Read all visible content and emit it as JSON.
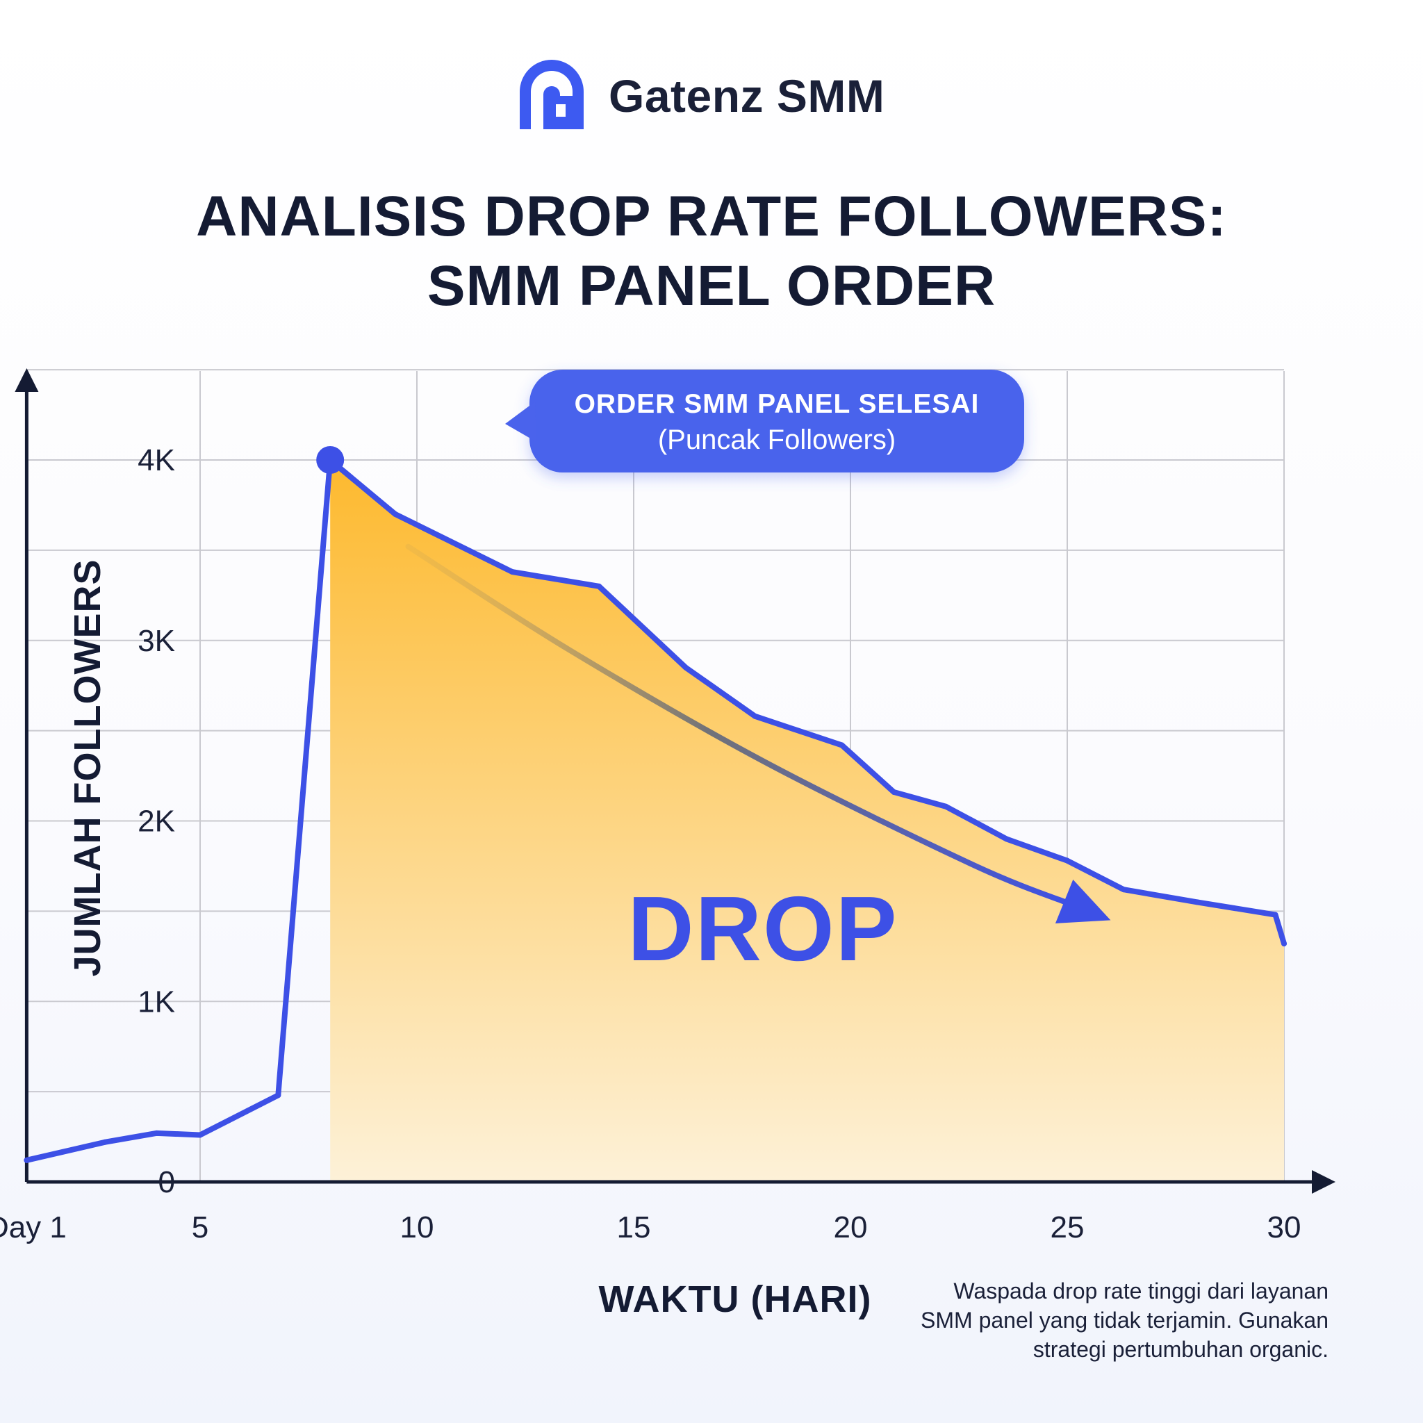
{
  "brand": {
    "name": "Gatenz SMM",
    "logo_icon": "gate-letter-g-icon",
    "color": "#3d5af1"
  },
  "title": {
    "line1": "ANALISIS DROP RATE FOLLOWERS:",
    "line2": "SMM PANEL ORDER"
  },
  "callout": {
    "title": "ORDER SMM PANEL SELESAI",
    "subtitle": "(Puncak Followers)",
    "color": "#4a63ec"
  },
  "drop_label": "DROP",
  "note": {
    "lines": [
      "Waspada drop rate tinggi dari layanan",
      "SMM panel yang tidak terjamin. Gunakan",
      "strategi pertumbuhan organic."
    ]
  },
  "colors": {
    "line": "#3d50e6",
    "area_top": "#fdb92e",
    "area_bottom": "#fdf1d8",
    "axis": "#141b33",
    "grid": "#c9c9cf"
  },
  "chart_data": {
    "type": "line",
    "xlabel": "WAKTU (HARI)",
    "ylabel": "JUMLAH FOLLOWERS",
    "xlim": [
      1,
      30
    ],
    "ylim": [
      0,
      4000
    ],
    "x_ticks": [
      1,
      5,
      10,
      15,
      20,
      25,
      30
    ],
    "x_tick_labels": [
      "Day 1",
      "5",
      "10",
      "15",
      "20",
      "25",
      "30"
    ],
    "y_ticks": [
      0,
      1000,
      2000,
      3000,
      4000
    ],
    "y_tick_labels": [
      "0",
      "1K",
      "2K",
      "3K",
      "4K"
    ],
    "grid": true,
    "series": [
      {
        "x": [
          1,
          2.8,
          4,
          5,
          6.8,
          8,
          9.5,
          12.2,
          14.2,
          16.2,
          17.8,
          19.8,
          21,
          22.2,
          23.6,
          25,
          26.3,
          28,
          29.8,
          30
        ],
        "y": [
          120,
          220,
          270,
          260,
          480,
          4000,
          3700,
          3380,
          3300,
          2850,
          2580,
          2420,
          2160,
          2080,
          1900,
          1780,
          1620,
          1550,
          1480,
          1320
        ]
      }
    ],
    "shaded_from_x": 8,
    "peak": {
      "x": 8,
      "y": 4000
    },
    "trend_arrow": {
      "x": [
        9.8,
        13.5,
        18,
        22.8,
        26
      ],
      "y": [
        3520,
        2950,
        2330,
        1760,
        1450
      ]
    }
  }
}
